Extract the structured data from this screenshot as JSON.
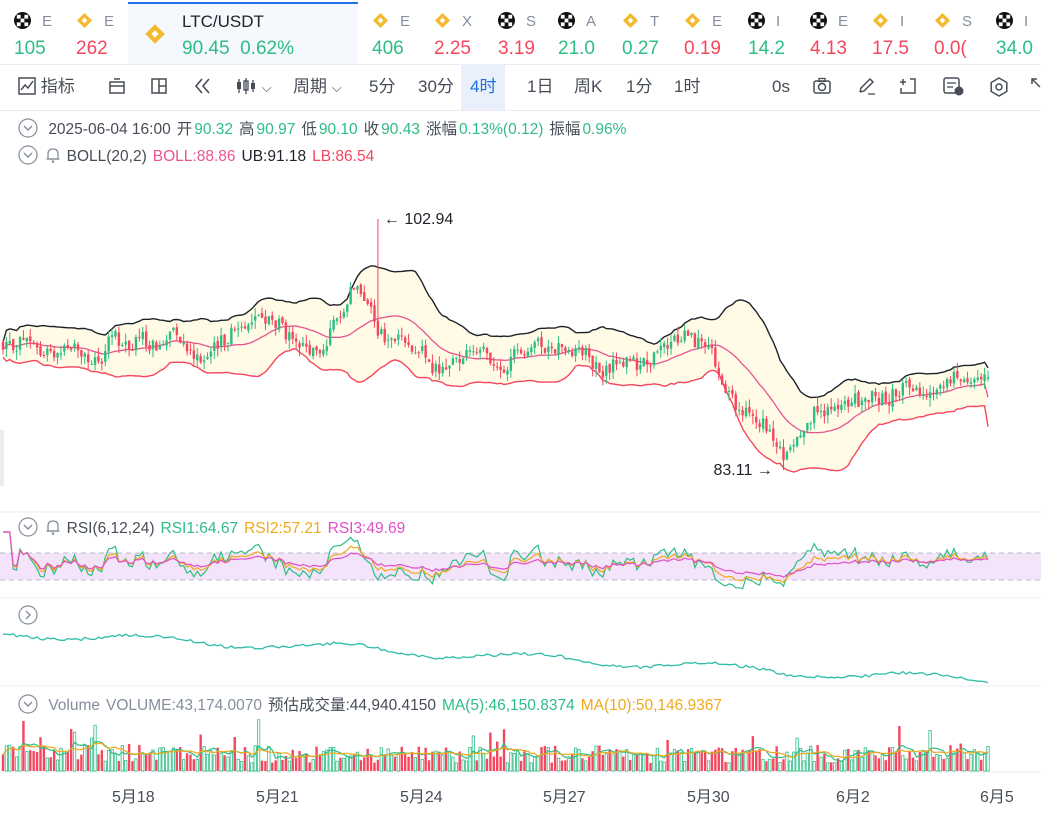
{
  "tickers": [
    {
      "icon": "okx-icon",
      "sym": "E",
      "price": "105",
      "dir": "up"
    },
    {
      "icon": "bnb-icon",
      "sym": "E",
      "price": "262",
      "dir": "dn"
    },
    {
      "icon": "bnb-icon",
      "sym": "LTC/USDT",
      "price": "90.45",
      "change": "0.62%",
      "dir": "up",
      "active": true
    },
    {
      "icon": "bnb-icon",
      "sym": "E",
      "price": "406",
      "dir": "up"
    },
    {
      "icon": "bnb-icon",
      "sym": "X",
      "price": "2.25",
      "dir": "dn"
    },
    {
      "icon": "okx-icon",
      "sym": "S",
      "price": "3.19",
      "dir": "dn"
    },
    {
      "icon": "okx-icon",
      "sym": "A",
      "price": "21.0",
      "dir": "up"
    },
    {
      "icon": "bnb-icon",
      "sym": "T",
      "price": "0.27",
      "dir": "up"
    },
    {
      "icon": "bnb-icon",
      "sym": "E",
      "price": "0.19",
      "dir": "dn"
    },
    {
      "icon": "okx-icon",
      "sym": "I",
      "price": "14.2",
      "dir": "up"
    },
    {
      "icon": "okx-icon",
      "sym": "E",
      "price": "4.13",
      "dir": "dn"
    },
    {
      "icon": "bnb-icon",
      "sym": "I",
      "price": "17.5",
      "dir": "dn"
    },
    {
      "icon": "bnb-icon",
      "sym": "S",
      "price": "0.0(",
      "dir": "dn"
    },
    {
      "icon": "okx-icon",
      "sym": "I",
      "price": "34.0",
      "dir": "up"
    }
  ],
  "toolbar": {
    "indicators": "指标",
    "period": "周期",
    "intervals": [
      "5分",
      "30分",
      "4时",
      "1日",
      "周K",
      "1分",
      "1时"
    ],
    "selected_interval": "4时",
    "countdown": "0s"
  },
  "ohlc_legend": {
    "date": "2025-06-04 16:00",
    "open_label": "开",
    "open": "90.32",
    "high_label": "高",
    "high": "90.97",
    "low_label": "低",
    "low": "90.10",
    "close_label": "收",
    "close": "90.43",
    "change_label": "涨幅",
    "change": "0.13%(0.12)",
    "amplitude_label": "振幅",
    "amplitude": "0.96%"
  },
  "boll_legend": {
    "name": "BOLL(20,2)",
    "boll": "BOLL:88.86",
    "ub": "UB:91.18",
    "lb": "LB:86.54"
  },
  "rsi_legend": {
    "name": "RSI(6,12,24)",
    "rsi1": "RSI1:64.67",
    "rsi2": "RSI2:57.21",
    "rsi3": "RSI3:49.69"
  },
  "volume_legend": {
    "name": "Volume",
    "volume": "VOLUME:43,174.0070",
    "estimate": "预估成交量:44,940.4150",
    "ma5": "MA(5):46,150.8374",
    "ma10": "MA(10):50,146.9367"
  },
  "colors": {
    "up": "#2ebd85",
    "down": "#f6465d",
    "accent": "#1f6feb",
    "boll_mid": "#e8548f",
    "band_fill": "#fffbe6",
    "rsi1": "#2ebd85",
    "rsi2": "#f0a91c",
    "rsi3": "#e04fc6"
  },
  "chart_data": {
    "type": "candlestick",
    "symbol": "LTC/USDT",
    "interval": "4时",
    "x_labels": [
      "5月18",
      "5月21",
      "5月24",
      "5月27",
      "5月30",
      "6月2",
      "6月5"
    ],
    "annotations": [
      {
        "text": "102.94",
        "kind": "high"
      },
      {
        "text": "83.11",
        "kind": "low"
      }
    ],
    "high_annotation": 102.94,
    "low_annotation": 83.11,
    "last": {
      "open": 90.32,
      "high": 90.97,
      "low": 90.1,
      "close": 90.43
    }
  }
}
